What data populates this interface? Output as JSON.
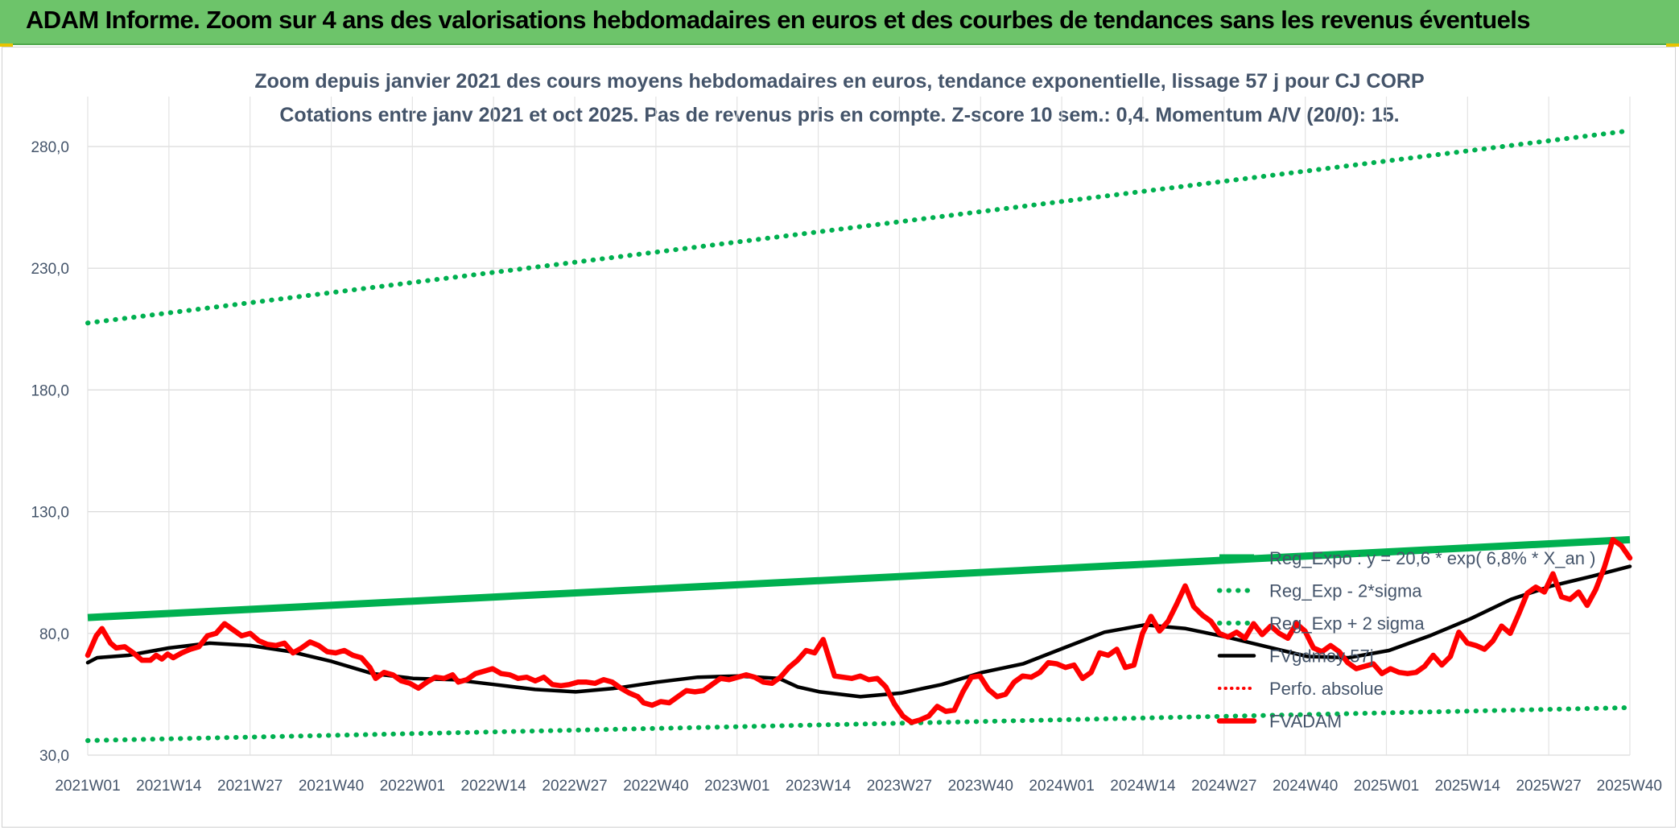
{
  "banner": {
    "title": "ADAM Informe. Zoom sur 4 ans des valorisations hebdomadaires en euros et des courbes de tendances sans les revenus éventuels"
  },
  "chart_data": {
    "type": "line",
    "title": "Zoom depuis janvier 2021 des cours moyens hebdomadaires en euros, tendance exponentielle, lissage 57 j pour CJ CORP",
    "subtitle": "Cotations entre janv 2021 et oct 2025. Pas de revenus pris en compte. Z-score 10 sem.: 0,4. Momentum A/V (20/0): 15.",
    "xlabel": "",
    "ylabel": "",
    "ylim": [
      30,
      290
    ],
    "yticks": [
      "30,0",
      "80,0",
      "130,0",
      "180,0",
      "230,0",
      "280,0"
    ],
    "ytick_values": [
      30,
      80,
      130,
      180,
      230,
      280
    ],
    "xticks": [
      "2021W01",
      "2021W14",
      "2021W27",
      "2021W40",
      "2022W01",
      "2022W14",
      "2022W27",
      "2022W40",
      "2023W01",
      "2023W14",
      "2023W27",
      "2023W40",
      "2024W01",
      "2024W14",
      "2024W27",
      "2024W40",
      "2025W01",
      "2025W14",
      "2025W27",
      "2025W40"
    ],
    "x_count": 250,
    "grid": true,
    "legend_position": "bottom-right",
    "colors": {
      "trend": "#00b050",
      "bands": "#00b050",
      "smoothed": "#000000",
      "perf": "#ff0000",
      "price": "#ff0000",
      "title_text": "#44546a",
      "banner": "#6dc46a"
    },
    "series": [
      {
        "name": "Reg_Expo : y = 20,6 * exp( 6,8% * X_an )",
        "style": "solid-thick",
        "points": [
          [
            0,
            86.5
          ],
          [
            249,
            118.5
          ]
        ]
      },
      {
        "name": "Reg_Exp - 2*sigma",
        "style": "dotted",
        "points": [
          [
            0,
            36.0
          ],
          [
            249,
            49.5
          ]
        ]
      },
      {
        "name": "Reg_Exp + 2 sigma",
        "style": "dotted",
        "points": [
          [
            0,
            207.5
          ],
          [
            249,
            286.5
          ]
        ]
      },
      {
        "name": "FVgdmoy 57j",
        "style": "solid",
        "points": [
          [
            0,
            68
          ],
          [
            3,
            70
          ],
          [
            8,
            70.5
          ],
          [
            13,
            71
          ],
          [
            26,
            74
          ],
          [
            39,
            76
          ],
          [
            52,
            75
          ],
          [
            65,
            72.5
          ],
          [
            78,
            68.5
          ],
          [
            91,
            63.5
          ],
          [
            104,
            61.5
          ],
          [
            117,
            61
          ],
          [
            130,
            59
          ],
          [
            143,
            57
          ],
          [
            156,
            56
          ],
          [
            169,
            57.5
          ],
          [
            182,
            60
          ],
          [
            195,
            62
          ],
          [
            208,
            62.5
          ],
          [
            221,
            61.5
          ],
          [
            227,
            58
          ],
          [
            234,
            56
          ],
          [
            247,
            54
          ],
          [
            260,
            55.5
          ],
          [
            273,
            59
          ],
          [
            286,
            64
          ],
          [
            299,
            67.5
          ],
          [
            312,
            74
          ],
          [
            325,
            80.5
          ],
          [
            338,
            83.5
          ],
          [
            351,
            82
          ],
          [
            364,
            78.5
          ],
          [
            377,
            74.5
          ],
          [
            390,
            70.5
          ],
          [
            403,
            70
          ],
          [
            416,
            73
          ],
          [
            429,
            79
          ],
          [
            442,
            86
          ],
          [
            455,
            94
          ],
          [
            468,
            99.5
          ],
          [
            481,
            103.5
          ],
          [
            493,
            107.5
          ]
        ],
        "x_scale_max": 493
      },
      {
        "name": "Perfo. absolue",
        "style": "dotted",
        "points": []
      },
      {
        "name": "FVADAM",
        "style": "solid-thick",
        "points": [
          [
            0,
            71
          ],
          [
            3,
            79
          ],
          [
            5,
            82
          ],
          [
            8,
            76
          ],
          [
            10,
            74
          ],
          [
            13,
            74.5
          ],
          [
            16,
            72
          ],
          [
            19,
            69
          ],
          [
            22,
            69
          ],
          [
            24,
            71
          ],
          [
            26,
            69.5
          ],
          [
            28,
            71.5
          ],
          [
            30,
            70
          ],
          [
            33,
            72
          ],
          [
            36,
            73.5
          ],
          [
            39,
            74.5
          ],
          [
            42,
            79
          ],
          [
            45,
            80
          ],
          [
            48,
            84
          ],
          [
            51,
            81.5
          ],
          [
            54,
            79
          ],
          [
            57,
            80
          ],
          [
            60,
            77
          ],
          [
            63,
            75.5
          ],
          [
            66,
            75
          ],
          [
            69,
            76
          ],
          [
            72,
            72
          ],
          [
            75,
            74
          ],
          [
            78,
            76.5
          ],
          [
            81,
            75
          ],
          [
            84,
            72.5
          ],
          [
            87,
            72
          ],
          [
            90,
            73
          ],
          [
            93,
            71
          ],
          [
            96,
            70
          ],
          [
            99,
            66
          ],
          [
            101,
            61.5
          ],
          [
            104,
            64
          ],
          [
            107,
            63
          ],
          [
            110,
            60.5
          ],
          [
            113,
            59.5
          ],
          [
            116,
            57.5
          ],
          [
            119,
            60
          ],
          [
            122,
            62
          ],
          [
            125,
            61.5
          ],
          [
            128,
            63
          ],
          [
            130,
            60
          ],
          [
            133,
            61
          ],
          [
            136,
            63.5
          ],
          [
            139,
            64.5
          ],
          [
            142,
            65.5
          ],
          [
            145,
            63.5
          ],
          [
            148,
            63
          ],
          [
            151,
            61.5
          ],
          [
            154,
            62
          ],
          [
            157,
            60.5
          ],
          [
            160,
            62
          ],
          [
            163,
            59
          ],
          [
            166,
            58.5
          ],
          [
            169,
            59
          ],
          [
            172,
            60
          ],
          [
            175,
            60
          ],
          [
            178,
            59.5
          ],
          [
            181,
            61
          ],
          [
            184,
            60
          ],
          [
            187,
            57.5
          ],
          [
            190,
            55.5
          ],
          [
            193,
            54
          ],
          [
            195,
            51.5
          ],
          [
            198,
            50.5
          ],
          [
            201,
            52
          ],
          [
            204,
            51.5
          ],
          [
            207,
            54
          ],
          [
            210,
            56.5
          ],
          [
            213,
            56
          ],
          [
            216,
            56.5
          ],
          [
            219,
            59
          ],
          [
            222,
            61.5
          ],
          [
            225,
            61
          ],
          [
            228,
            62
          ],
          [
            231,
            63
          ],
          [
            234,
            62
          ],
          [
            237,
            60
          ],
          [
            240,
            59.5
          ],
          [
            243,
            62
          ],
          [
            246,
            66
          ],
          [
            249,
            69
          ],
          [
            252,
            73
          ],
          [
            255,
            72
          ],
          [
            258,
            77.5
          ],
          [
            260,
            70
          ],
          [
            262,
            62.5
          ],
          [
            265,
            62
          ],
          [
            268,
            61.5
          ],
          [
            271,
            62.5
          ],
          [
            274,
            61
          ],
          [
            277,
            61.5
          ],
          [
            280,
            58
          ],
          [
            283,
            51
          ],
          [
            286,
            46
          ],
          [
            289,
            43.5
          ],
          [
            292,
            44.5
          ],
          [
            295,
            46
          ],
          [
            298,
            50
          ],
          [
            301,
            48
          ],
          [
            304,
            48.5
          ],
          [
            307,
            56
          ],
          [
            310,
            62
          ],
          [
            313,
            62.5
          ],
          [
            316,
            57
          ],
          [
            319,
            54
          ],
          [
            322,
            55
          ],
          [
            325,
            60
          ],
          [
            328,
            62.5
          ],
          [
            331,
            62
          ],
          [
            334,
            64
          ],
          [
            337,
            68
          ],
          [
            340,
            67.5
          ],
          [
            343,
            66
          ],
          [
            346,
            67
          ],
          [
            349,
            61.5
          ],
          [
            352,
            64
          ],
          [
            355,
            72
          ],
          [
            358,
            71
          ],
          [
            361,
            73.5
          ],
          [
            364,
            66
          ],
          [
            367,
            67
          ],
          [
            370,
            80
          ],
          [
            373,
            87
          ],
          [
            376,
            81
          ],
          [
            379,
            85
          ],
          [
            382,
            92
          ],
          [
            385,
            99.5
          ],
          [
            388,
            91
          ],
          [
            391,
            87.5
          ],
          [
            394,
            85
          ],
          [
            397,
            80
          ],
          [
            400,
            78.5
          ],
          [
            403,
            80.5
          ],
          [
            406,
            78
          ],
          [
            409,
            84
          ],
          [
            412,
            79.5
          ],
          [
            415,
            83
          ],
          [
            418,
            80
          ],
          [
            421,
            78
          ],
          [
            424,
            84
          ],
          [
            427,
            81
          ],
          [
            430,
            74
          ],
          [
            433,
            72.5
          ],
          [
            436,
            75
          ],
          [
            439,
            72.5
          ],
          [
            442,
            68
          ],
          [
            445,
            65.5
          ],
          [
            448,
            66.5
          ],
          [
            451,
            67.5
          ],
          [
            454,
            63.5
          ],
          [
            457,
            65.5
          ],
          [
            460,
            64
          ],
          [
            463,
            63.5
          ],
          [
            466,
            64
          ],
          [
            469,
            66.5
          ],
          [
            472,
            71
          ],
          [
            475,
            67
          ],
          [
            478,
            70.5
          ],
          [
            481,
            80.5
          ],
          [
            484,
            76
          ],
          [
            487,
            75
          ],
          [
            490,
            73.5
          ],
          [
            493,
            77
          ],
          [
            496,
            83
          ],
          [
            499,
            80
          ],
          [
            502,
            88
          ],
          [
            505,
            96.5
          ],
          [
            508,
            99
          ],
          [
            511,
            97
          ],
          [
            514,
            104.5
          ],
          [
            517,
            95
          ],
          [
            520,
            94
          ],
          [
            523,
            97
          ],
          [
            526,
            91.5
          ],
          [
            529,
            98
          ],
          [
            532,
            107
          ],
          [
            535,
            118.5
          ],
          [
            538,
            116
          ],
          [
            541,
            111
          ]
        ],
        "x_scale_max": 541
      }
    ]
  }
}
